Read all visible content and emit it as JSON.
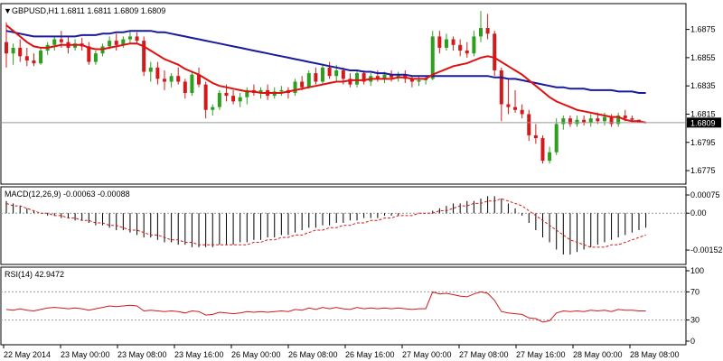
{
  "symbol": {
    "label": "GBPUSD,H1",
    "ohlc": "1.6811 1.6811 1.6809 1.6809"
  },
  "colors": {
    "bull": "#2e9e1e",
    "bear": "#d31a1a",
    "ma_fast": "#e01010",
    "ma_slow": "#1a1a9e",
    "macd_hist": "#000000",
    "macd_signal": "#d31a1a",
    "rsi": "#d31a1a",
    "level_line": "#999999",
    "price_box": "#000000"
  },
  "chart_data": [
    {
      "type": "candlestick",
      "title": "GBPUSD,H1  1.6811 1.6811 1.6809 1.6809",
      "ylim": [
        1.6768,
        1.6892
      ],
      "yticks": [
        "1.6875",
        "1.6855",
        "1.6835",
        "1.6815",
        "1.6795",
        "1.6775"
      ],
      "current_price": "1.6809",
      "xticks": [
        "22 May 2014",
        "23 May 00:00",
        "23 May 08:00",
        "23 May 16:00",
        "26 May 00:00",
        "26 May 08:00",
        "26 May 16:00",
        "27 May 00:00",
        "27 May 08:00",
        "27 May 16:00",
        "28 May 00:00",
        "28 May 08:00"
      ],
      "candles": [
        {
          "o": 1.6866,
          "h": 1.688,
          "l": 1.6848,
          "c": 1.6858
        },
        {
          "o": 1.6858,
          "h": 1.6865,
          "l": 1.685,
          "c": 1.6862
        },
        {
          "o": 1.6862,
          "h": 1.6868,
          "l": 1.6852,
          "c": 1.6856
        },
        {
          "o": 1.6856,
          "h": 1.6862,
          "l": 1.6849,
          "c": 1.6853
        },
        {
          "o": 1.6853,
          "h": 1.6858,
          "l": 1.6849,
          "c": 1.6851
        },
        {
          "o": 1.6851,
          "h": 1.6862,
          "l": 1.685,
          "c": 1.686
        },
        {
          "o": 1.686,
          "h": 1.6866,
          "l": 1.6857,
          "c": 1.6864
        },
        {
          "o": 1.6864,
          "h": 1.687,
          "l": 1.686,
          "c": 1.6868
        },
        {
          "o": 1.6868,
          "h": 1.6874,
          "l": 1.6862,
          "c": 1.6866
        },
        {
          "o": 1.6866,
          "h": 1.687,
          "l": 1.6858,
          "c": 1.6862
        },
        {
          "o": 1.6862,
          "h": 1.6868,
          "l": 1.686,
          "c": 1.6865
        },
        {
          "o": 1.6865,
          "h": 1.6869,
          "l": 1.686,
          "c": 1.6863
        },
        {
          "o": 1.6863,
          "h": 1.6866,
          "l": 1.685,
          "c": 1.6852
        },
        {
          "o": 1.6852,
          "h": 1.686,
          "l": 1.685,
          "c": 1.6858
        },
        {
          "o": 1.6858,
          "h": 1.6865,
          "l": 1.6856,
          "c": 1.6863
        },
        {
          "o": 1.6863,
          "h": 1.687,
          "l": 1.6861,
          "c": 1.6867
        },
        {
          "o": 1.6867,
          "h": 1.6872,
          "l": 1.686,
          "c": 1.6864
        },
        {
          "o": 1.6864,
          "h": 1.687,
          "l": 1.6862,
          "c": 1.6868
        },
        {
          "o": 1.6868,
          "h": 1.6874,
          "l": 1.6865,
          "c": 1.687
        },
        {
          "o": 1.687,
          "h": 1.6873,
          "l": 1.6865,
          "c": 1.6867
        },
        {
          "o": 1.6867,
          "h": 1.687,
          "l": 1.6842,
          "c": 1.6845
        },
        {
          "o": 1.6845,
          "h": 1.6852,
          "l": 1.6838,
          "c": 1.6848
        },
        {
          "o": 1.6848,
          "h": 1.6852,
          "l": 1.6836,
          "c": 1.684
        },
        {
          "o": 1.684,
          "h": 1.6846,
          "l": 1.6832,
          "c": 1.6838
        },
        {
          "o": 1.6838,
          "h": 1.6844,
          "l": 1.6834,
          "c": 1.6842
        },
        {
          "o": 1.6842,
          "h": 1.6848,
          "l": 1.6836,
          "c": 1.6838
        },
        {
          "o": 1.6838,
          "h": 1.684,
          "l": 1.6826,
          "c": 1.683
        },
        {
          "o": 1.683,
          "h": 1.6845,
          "l": 1.6828,
          "c": 1.6843
        },
        {
          "o": 1.6843,
          "h": 1.6848,
          "l": 1.6834,
          "c": 1.6836
        },
        {
          "o": 1.6836,
          "h": 1.6838,
          "l": 1.6812,
          "c": 1.6818
        },
        {
          "o": 1.6818,
          "h": 1.6822,
          "l": 1.6814,
          "c": 1.682
        },
        {
          "o": 1.682,
          "h": 1.6832,
          "l": 1.6818,
          "c": 1.683
        },
        {
          "o": 1.683,
          "h": 1.6836,
          "l": 1.6824,
          "c": 1.6828
        },
        {
          "o": 1.6828,
          "h": 1.6832,
          "l": 1.6822,
          "c": 1.6824
        },
        {
          "o": 1.6824,
          "h": 1.683,
          "l": 1.682,
          "c": 1.6827
        },
        {
          "o": 1.6827,
          "h": 1.6834,
          "l": 1.6822,
          "c": 1.6832
        },
        {
          "o": 1.6832,
          "h": 1.6836,
          "l": 1.6828,
          "c": 1.683
        },
        {
          "o": 1.683,
          "h": 1.6834,
          "l": 1.6826,
          "c": 1.6832
        },
        {
          "o": 1.6832,
          "h": 1.6836,
          "l": 1.6825,
          "c": 1.6828
        },
        {
          "o": 1.6828,
          "h": 1.6834,
          "l": 1.6826,
          "c": 1.6831
        },
        {
          "o": 1.6831,
          "h": 1.6835,
          "l": 1.6828,
          "c": 1.6832
        },
        {
          "o": 1.6832,
          "h": 1.6834,
          "l": 1.6826,
          "c": 1.683
        },
        {
          "o": 1.683,
          "h": 1.684,
          "l": 1.6828,
          "c": 1.6838
        },
        {
          "o": 1.6838,
          "h": 1.6842,
          "l": 1.6832,
          "c": 1.6834
        },
        {
          "o": 1.6834,
          "h": 1.6846,
          "l": 1.6833,
          "c": 1.6844
        },
        {
          "o": 1.6844,
          "h": 1.6848,
          "l": 1.6836,
          "c": 1.6838
        },
        {
          "o": 1.6838,
          "h": 1.685,
          "l": 1.6836,
          "c": 1.6848
        },
        {
          "o": 1.6848,
          "h": 1.6852,
          "l": 1.684,
          "c": 1.6842
        },
        {
          "o": 1.6842,
          "h": 1.685,
          "l": 1.6838,
          "c": 1.6846
        },
        {
          "o": 1.6846,
          "h": 1.6848,
          "l": 1.6836,
          "c": 1.684
        },
        {
          "o": 1.684,
          "h": 1.6844,
          "l": 1.6834,
          "c": 1.6836
        },
        {
          "o": 1.6836,
          "h": 1.6846,
          "l": 1.6834,
          "c": 1.6844
        },
        {
          "o": 1.6844,
          "h": 1.6846,
          "l": 1.6836,
          "c": 1.6838
        },
        {
          "o": 1.6838,
          "h": 1.6844,
          "l": 1.6835,
          "c": 1.6842
        },
        {
          "o": 1.6842,
          "h": 1.6846,
          "l": 1.6838,
          "c": 1.684
        },
        {
          "o": 1.684,
          "h": 1.6845,
          "l": 1.6837,
          "c": 1.6843
        },
        {
          "o": 1.6843,
          "h": 1.6846,
          "l": 1.6838,
          "c": 1.6841
        },
        {
          "o": 1.6841,
          "h": 1.6845,
          "l": 1.6838,
          "c": 1.6843
        },
        {
          "o": 1.6843,
          "h": 1.6846,
          "l": 1.6837,
          "c": 1.684
        },
        {
          "o": 1.684,
          "h": 1.6842,
          "l": 1.6834,
          "c": 1.6838
        },
        {
          "o": 1.6838,
          "h": 1.6842,
          "l": 1.6835,
          "c": 1.6839
        },
        {
          "o": 1.6839,
          "h": 1.6842,
          "l": 1.6836,
          "c": 1.684
        },
        {
          "o": 1.684,
          "h": 1.6874,
          "l": 1.6839,
          "c": 1.687
        },
        {
          "o": 1.687,
          "h": 1.6874,
          "l": 1.6858,
          "c": 1.6862
        },
        {
          "o": 1.6862,
          "h": 1.6872,
          "l": 1.686,
          "c": 1.6868
        },
        {
          "o": 1.6868,
          "h": 1.687,
          "l": 1.686,
          "c": 1.6864
        },
        {
          "o": 1.6864,
          "h": 1.6868,
          "l": 1.6856,
          "c": 1.686
        },
        {
          "o": 1.686,
          "h": 1.6866,
          "l": 1.6855,
          "c": 1.6858
        },
        {
          "o": 1.6858,
          "h": 1.6874,
          "l": 1.6856,
          "c": 1.687
        },
        {
          "o": 1.687,
          "h": 1.6888,
          "l": 1.6866,
          "c": 1.6876
        },
        {
          "o": 1.6876,
          "h": 1.6886,
          "l": 1.6868,
          "c": 1.6872
        },
        {
          "o": 1.6872,
          "h": 1.6874,
          "l": 1.6842,
          "c": 1.6846
        },
        {
          "o": 1.6846,
          "h": 1.6848,
          "l": 1.681,
          "c": 1.6822
        },
        {
          "o": 1.6822,
          "h": 1.684,
          "l": 1.6815,
          "c": 1.682
        },
        {
          "o": 1.682,
          "h": 1.6832,
          "l": 1.6816,
          "c": 1.6818
        },
        {
          "o": 1.6818,
          "h": 1.6822,
          "l": 1.6812,
          "c": 1.6815
        },
        {
          "o": 1.6815,
          "h": 1.6818,
          "l": 1.6796,
          "c": 1.68
        },
        {
          "o": 1.68,
          "h": 1.6808,
          "l": 1.6794,
          "c": 1.6798
        },
        {
          "o": 1.6798,
          "h": 1.68,
          "l": 1.678,
          "c": 1.6782
        },
        {
          "o": 1.6782,
          "h": 1.6792,
          "l": 1.678,
          "c": 1.6788
        },
        {
          "o": 1.6788,
          "h": 1.6812,
          "l": 1.6786,
          "c": 1.6808
        },
        {
          "o": 1.6808,
          "h": 1.6814,
          "l": 1.6804,
          "c": 1.6812
        },
        {
          "o": 1.6812,
          "h": 1.6814,
          "l": 1.6806,
          "c": 1.6808
        },
        {
          "o": 1.6808,
          "h": 1.6814,
          "l": 1.6806,
          "c": 1.6811
        },
        {
          "o": 1.6811,
          "h": 1.6814,
          "l": 1.6807,
          "c": 1.6809
        },
        {
          "o": 1.6809,
          "h": 1.6815,
          "l": 1.6806,
          "c": 1.6812
        },
        {
          "o": 1.6812,
          "h": 1.6816,
          "l": 1.6808,
          "c": 1.681
        },
        {
          "o": 1.681,
          "h": 1.6816,
          "l": 1.6807,
          "c": 1.6813
        },
        {
          "o": 1.6813,
          "h": 1.6815,
          "l": 1.6806,
          "c": 1.6808
        },
        {
          "o": 1.6808,
          "h": 1.6816,
          "l": 1.6806,
          "c": 1.6814
        },
        {
          "o": 1.6814,
          "h": 1.6818,
          "l": 1.681,
          "c": 1.6812
        },
        {
          "o": 1.6812,
          "h": 1.6814,
          "l": 1.6809,
          "c": 1.6811
        },
        {
          "o": 1.6811,
          "h": 1.6811,
          "l": 1.6809,
          "c": 1.6809
        }
      ],
      "ma_fast": [
        1.6878,
        1.6874,
        1.687,
        1.6866,
        1.6863,
        1.6862,
        1.6862,
        1.6863,
        1.6864,
        1.6864,
        1.6864,
        1.6864,
        1.6862,
        1.6861,
        1.6861,
        1.6862,
        1.6863,
        1.6864,
        1.6865,
        1.6865,
        1.6863,
        1.686,
        1.6857,
        1.6854,
        1.6852,
        1.685,
        1.6847,
        1.6845,
        1.6843,
        1.684,
        1.6837,
        1.6835,
        1.6834,
        1.6833,
        1.6832,
        1.6831,
        1.6831,
        1.683,
        1.683,
        1.683,
        1.683,
        1.6831,
        1.6832,
        1.6833,
        1.6834,
        1.6835,
        1.6836,
        1.6837,
        1.6838,
        1.6838,
        1.6839,
        1.6839,
        1.6839,
        1.684,
        1.684,
        1.684,
        1.684,
        1.6841,
        1.6841,
        1.684,
        1.684,
        1.684,
        1.6843,
        1.6845,
        1.6847,
        1.6849,
        1.685,
        1.6851,
        1.6853,
        1.6855,
        1.6856,
        1.6855,
        1.6852,
        1.6849,
        1.6846,
        1.6843,
        1.6839,
        1.6835,
        1.6831,
        1.6827,
        1.6824,
        1.6822,
        1.682,
        1.6818,
        1.6817,
        1.6816,
        1.6815,
        1.6814,
        1.6813,
        1.6813,
        1.6811,
        1.681,
        1.681,
        1.6809
      ],
      "ma_slow": [
        1.6874,
        1.6873,
        1.6872,
        1.6871,
        1.687,
        1.687,
        1.687,
        1.687,
        1.687,
        1.687,
        1.687,
        1.6871,
        1.6871,
        1.6871,
        1.6872,
        1.6872,
        1.6873,
        1.6873,
        1.6874,
        1.6874,
        1.6874,
        1.6874,
        1.6873,
        1.6873,
        1.6872,
        1.6871,
        1.687,
        1.6869,
        1.6868,
        1.6867,
        1.6866,
        1.6865,
        1.6864,
        1.6863,
        1.6862,
        1.6861,
        1.686,
        1.6859,
        1.6858,
        1.6857,
        1.6856,
        1.6855,
        1.6854,
        1.6853,
        1.6852,
        1.6851,
        1.685,
        1.6849,
        1.6848,
        1.6847,
        1.6846,
        1.6846,
        1.6845,
        1.6845,
        1.6844,
        1.6844,
        1.6843,
        1.6843,
        1.6843,
        1.6842,
        1.6842,
        1.6842,
        1.6842,
        1.6842,
        1.6842,
        1.6842,
        1.6842,
        1.6842,
        1.6842,
        1.6842,
        1.6842,
        1.6841,
        1.6841,
        1.684,
        1.684,
        1.6839,
        1.6838,
        1.6837,
        1.6836,
        1.6835,
        1.6834,
        1.6834,
        1.6833,
        1.6833,
        1.6833,
        1.6832,
        1.6832,
        1.6832,
        1.6832,
        1.6831,
        1.6831,
        1.6831,
        1.683,
        1.683
      ]
    },
    {
      "type": "bar",
      "title": "MACD(12,26,9) -0.00063 -0.00088",
      "ylim": [
        -0.002,
        0.0009
      ],
      "yticks": [
        "0.00075",
        "0.00",
        "-0.00152"
      ],
      "histogram": [
        0.0005,
        0.0004,
        0.0003,
        0.0002,
        0.0001,
        0.0,
        -0.0001,
        -0.0001,
        -0.0002,
        -0.0002,
        -0.0003,
        -0.0003,
        -0.0004,
        -0.0005,
        -0.0005,
        -0.0006,
        -0.0007,
        -0.0007,
        -0.0008,
        -0.0009,
        -0.001,
        -0.001,
        -0.0011,
        -0.0012,
        -0.0012,
        -0.0013,
        -0.0013,
        -0.0014,
        -0.0014,
        -0.0014,
        -0.0014,
        -0.0013,
        -0.0013,
        -0.0013,
        -0.0012,
        -0.0012,
        -0.0011,
        -0.0011,
        -0.001,
        -0.001,
        -0.0009,
        -0.0009,
        -0.0008,
        -0.0007,
        -0.0006,
        -0.0006,
        -0.0005,
        -0.0005,
        -0.0004,
        -0.0004,
        -0.0003,
        -0.0003,
        -0.0002,
        -0.0002,
        -0.0002,
        -0.0001,
        -0.0001,
        -0.0001,
        0.0,
        0.0,
        0.0,
        0.0,
        0.0001,
        0.0002,
        0.0003,
        0.0004,
        0.0004,
        0.0005,
        0.0005,
        0.0006,
        0.0007,
        0.0007,
        0.0006,
        0.0004,
        0.0002,
        -0.0001,
        -0.0004,
        -0.0007,
        -0.001,
        -0.0012,
        -0.0015,
        -0.0017,
        -0.0017,
        -0.0016,
        -0.0015,
        -0.0014,
        -0.0013,
        -0.0012,
        -0.0011,
        -0.001,
        -0.0009,
        -0.0008,
        -0.0007,
        -0.0006
      ],
      "signal": [
        0.0004,
        0.0003,
        0.0003,
        0.0002,
        0.0001,
        0.0,
        0.0,
        -0.0001,
        -0.0001,
        -0.0002,
        -0.0002,
        -0.0003,
        -0.0003,
        -0.0004,
        -0.0004,
        -0.0005,
        -0.0005,
        -0.0006,
        -0.0007,
        -0.0007,
        -0.0008,
        -0.0009,
        -0.0009,
        -0.001,
        -0.0011,
        -0.0011,
        -0.0012,
        -0.0012,
        -0.0013,
        -0.0013,
        -0.0013,
        -0.0013,
        -0.0013,
        -0.0013,
        -0.0013,
        -0.0013,
        -0.0012,
        -0.0012,
        -0.0011,
        -0.0011,
        -0.001,
        -0.001,
        -0.0009,
        -0.0009,
        -0.0008,
        -0.0007,
        -0.0007,
        -0.0006,
        -0.0006,
        -0.0005,
        -0.0005,
        -0.0004,
        -0.0004,
        -0.0003,
        -0.0003,
        -0.0002,
        -0.0002,
        -0.0001,
        -0.0001,
        -0.0001,
        0.0,
        0.0,
        0.0,
        0.0001,
        0.0001,
        0.0002,
        0.0003,
        0.0003,
        0.0004,
        0.0004,
        0.0005,
        0.0005,
        0.0006,
        0.0005,
        0.0004,
        0.0003,
        0.0001,
        -0.0001,
        -0.0003,
        -0.0005,
        -0.0007,
        -0.0009,
        -0.0011,
        -0.0012,
        -0.0013,
        -0.0014,
        -0.0014,
        -0.0014,
        -0.0013,
        -0.0013,
        -0.0012,
        -0.0011,
        -0.001,
        -0.0009
      ]
    },
    {
      "type": "line",
      "title": "RSI(14) 42.9472",
      "ylim": [
        0,
        100
      ],
      "yticks": [
        "100",
        "70",
        "30",
        "0"
      ],
      "levels": [
        70,
        30
      ],
      "values": [
        45,
        44,
        46,
        44,
        43,
        45,
        47,
        48,
        47,
        46,
        47,
        46,
        44,
        46,
        48,
        50,
        49,
        50,
        51,
        50,
        43,
        44,
        43,
        42,
        43,
        42,
        40,
        43,
        42,
        37,
        38,
        41,
        40,
        39,
        40,
        42,
        41,
        42,
        41,
        42,
        43,
        42,
        45,
        44,
        47,
        45,
        48,
        46,
        48,
        46,
        45,
        48,
        46,
        47,
        46,
        47,
        46,
        47,
        46,
        45,
        46,
        46,
        70,
        67,
        68,
        66,
        64,
        63,
        67,
        70,
        68,
        58,
        42,
        40,
        39,
        38,
        33,
        32,
        27,
        29,
        40,
        43,
        42,
        43,
        42,
        44,
        43,
        44,
        42,
        45,
        44,
        44,
        43,
        43
      ]
    }
  ]
}
